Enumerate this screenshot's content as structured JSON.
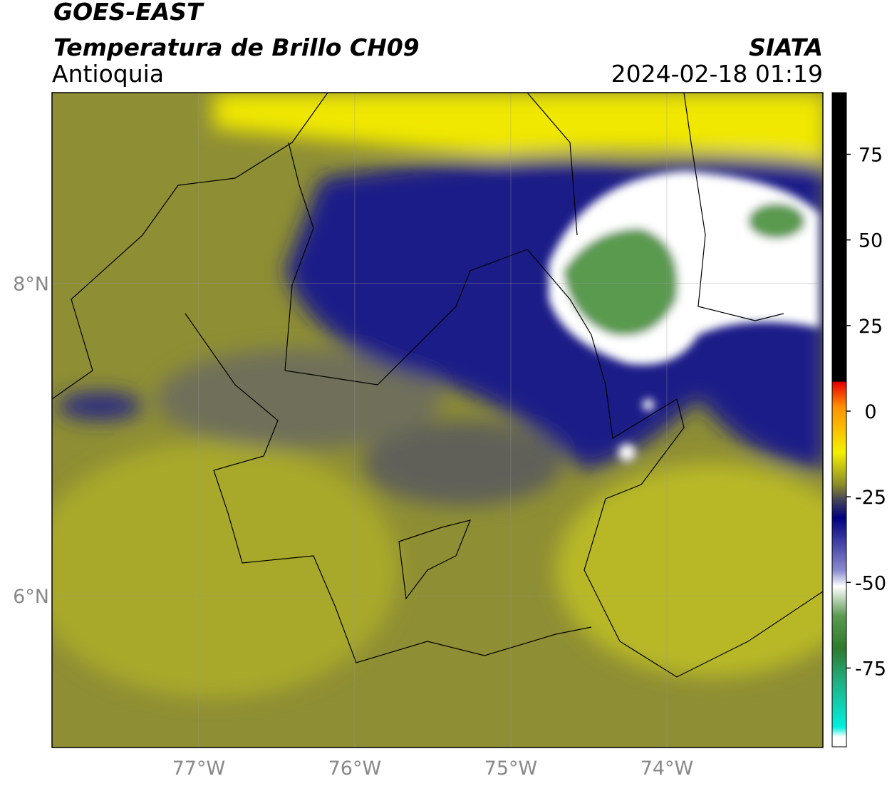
{
  "header": {
    "satellite": "GOES-EAST",
    "title": "Temperatura de Brillo CH09",
    "region": "Antioquia",
    "source": "SIATA",
    "datetime": "2024-02-18 01:19"
  },
  "map": {
    "xlim": [
      -77.94,
      -73.0
    ],
    "ylim": [
      5.03,
      9.22
    ],
    "xticks": [
      {
        "value": -77,
        "label": "77°W"
      },
      {
        "value": -76,
        "label": "76°W"
      },
      {
        "value": -75,
        "label": "75°W"
      },
      {
        "value": -74,
        "label": "74°W"
      }
    ],
    "yticks": [
      {
        "value": 8,
        "label": "8°N"
      },
      {
        "value": 6,
        "label": "6°N"
      }
    ]
  },
  "colorbar": {
    "lim": [
      -98,
      93
    ],
    "ticks": [
      75,
      50,
      25,
      0,
      -25,
      -50,
      -75
    ]
  }
}
